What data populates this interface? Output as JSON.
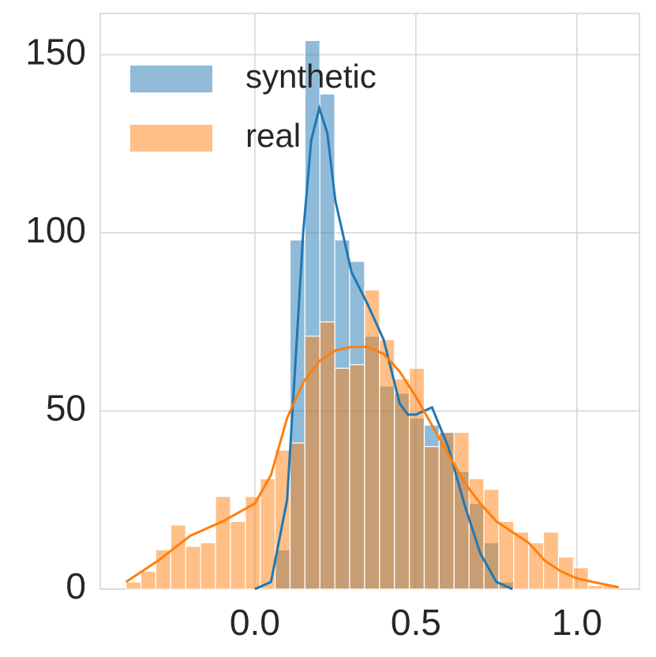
{
  "chart_data": {
    "type": "histogram",
    "bins": [
      -0.4,
      -0.3537,
      -0.3074,
      -0.2611,
      -0.2148,
      -0.1685,
      -0.1222,
      -0.0759,
      -0.0296,
      0.0167,
      0.063,
      0.1093,
      0.1556,
      0.2019,
      0.2482,
      0.2945,
      0.3408,
      0.3871,
      0.4334,
      0.4797,
      0.526,
      0.5723,
      0.6186,
      0.6649,
      0.7112,
      0.7575,
      0.8038,
      0.8501,
      0.8964,
      0.9427,
      0.989,
      1.0353,
      1.0816,
      1.1279
    ],
    "series": [
      {
        "name": "synthetic",
        "color": "#1f77b4",
        "values": [
          0,
          0,
          0,
          0,
          0,
          0,
          0,
          0,
          0,
          0,
          11,
          98,
          154,
          139,
          98,
          92,
          71,
          57,
          55,
          48,
          46,
          44,
          33,
          24,
          13,
          2,
          0,
          0,
          0,
          0,
          0,
          0,
          0
        ],
        "kde_x": [
          0.0,
          0.05,
          0.1,
          0.125,
          0.15,
          0.175,
          0.2,
          0.225,
          0.25,
          0.3,
          0.35,
          0.4,
          0.45,
          0.475,
          0.5,
          0.55,
          0.6,
          0.65,
          0.7,
          0.75,
          0.8
        ],
        "kde": [
          0,
          2,
          25,
          62,
          100,
          126,
          135,
          128,
          109,
          89,
          80,
          70,
          52,
          49,
          49,
          51,
          40,
          24,
          10,
          2,
          0
        ]
      },
      {
        "name": "real",
        "color": "#ff7f0e",
        "values": [
          2,
          5,
          11,
          18,
          12,
          13,
          26,
          19,
          26,
          31,
          39,
          41,
          71,
          75,
          62,
          63,
          84,
          70,
          59,
          62,
          40,
          44,
          44,
          31,
          28,
          19,
          16,
          13,
          16,
          9,
          6,
          1,
          1
        ],
        "kde_x": [
          -0.4,
          -0.3,
          -0.2,
          -0.1,
          0.0,
          0.05,
          0.1,
          0.15,
          0.2,
          0.25,
          0.3,
          0.35,
          0.4,
          0.45,
          0.5,
          0.55,
          0.6,
          0.65,
          0.7,
          0.75,
          0.8,
          0.85,
          0.9,
          0.95,
          1.0,
          1.05,
          1.13
        ],
        "kde": [
          2,
          8,
          15,
          19,
          24,
          32,
          48,
          58,
          64,
          67,
          68,
          68,
          66,
          61,
          54,
          46,
          38,
          30,
          24,
          19,
          16,
          13,
          8,
          5,
          3,
          2,
          0.5
        ]
      }
    ],
    "xlim": [
      -0.48,
      1.194
    ],
    "ylim": [
      0,
      161.6
    ],
    "xticks": [
      {
        "value": 0,
        "label": "0.0"
      },
      0.5,
      {
        "value": 1,
        "label": "1.0"
      }
    ],
    "yticks": [
      0,
      50,
      100,
      150
    ],
    "grid": true,
    "legend": "upper left"
  }
}
